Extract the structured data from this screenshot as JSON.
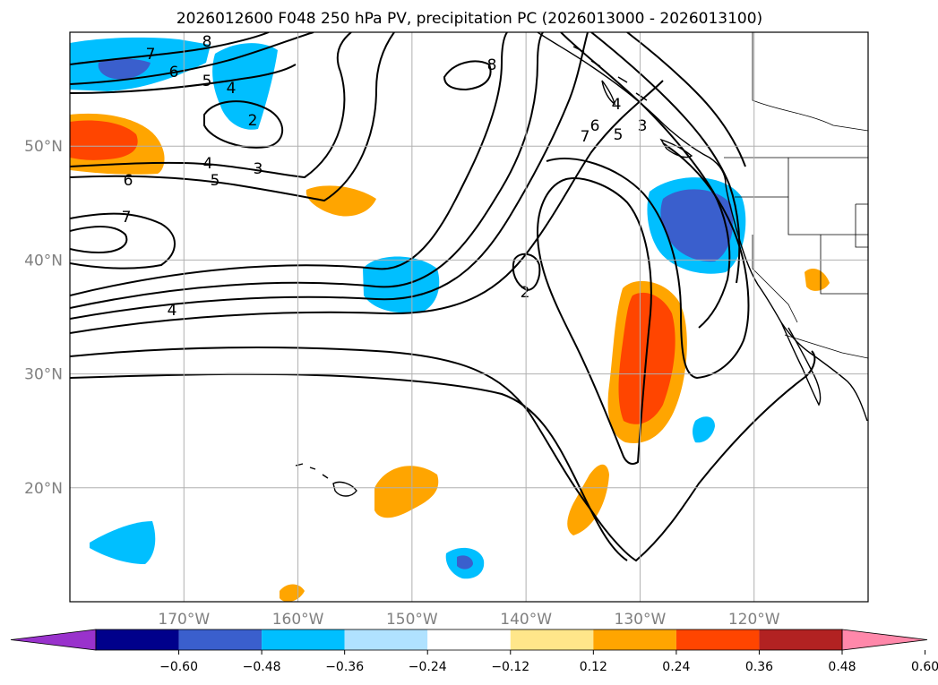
{
  "chart_data": {
    "type": "contour",
    "title": "2026012600 F048 250 hPa PV, precipitation PC (2026013000 - 2026013100)",
    "projection": "lat-lon",
    "x_ticks": [
      "170°W",
      "160°W",
      "150°W",
      "140°W",
      "130°W",
      "120°W"
    ],
    "y_ticks": [
      "50°N",
      "40°N",
      "30°N",
      "20°N"
    ],
    "lon_range": [
      -180,
      -110
    ],
    "lat_range": [
      10,
      60
    ],
    "grid": true,
    "pv_contour_labels": [
      "7",
      "8",
      "6",
      "5",
      "4",
      "2",
      "4",
      "3",
      "5",
      "6",
      "7",
      "4",
      "2",
      "8",
      "7",
      "6",
      "5",
      "4",
      "3"
    ],
    "colorbar": {
      "orientation": "horizontal",
      "extend": "both",
      "levels": [
        -0.6,
        -0.48,
        -0.36,
        -0.24,
        -0.12,
        0.12,
        0.24,
        0.36,
        0.48,
        0.6
      ],
      "tick_labels": [
        "−0.60",
        "−0.48",
        "−0.36",
        "−0.24",
        "−0.12",
        "0.12",
        "0.24",
        "0.36",
        "0.48",
        "0.60"
      ],
      "colors": [
        "#9932cc",
        "#00008b",
        "#3a5fcd",
        "#00bfff",
        "#b0e2ff",
        "#ffffff",
        "#ffe68a",
        "#ffa500",
        "#ff4500",
        "#b22222",
        "#ff88aa"
      ]
    }
  }
}
